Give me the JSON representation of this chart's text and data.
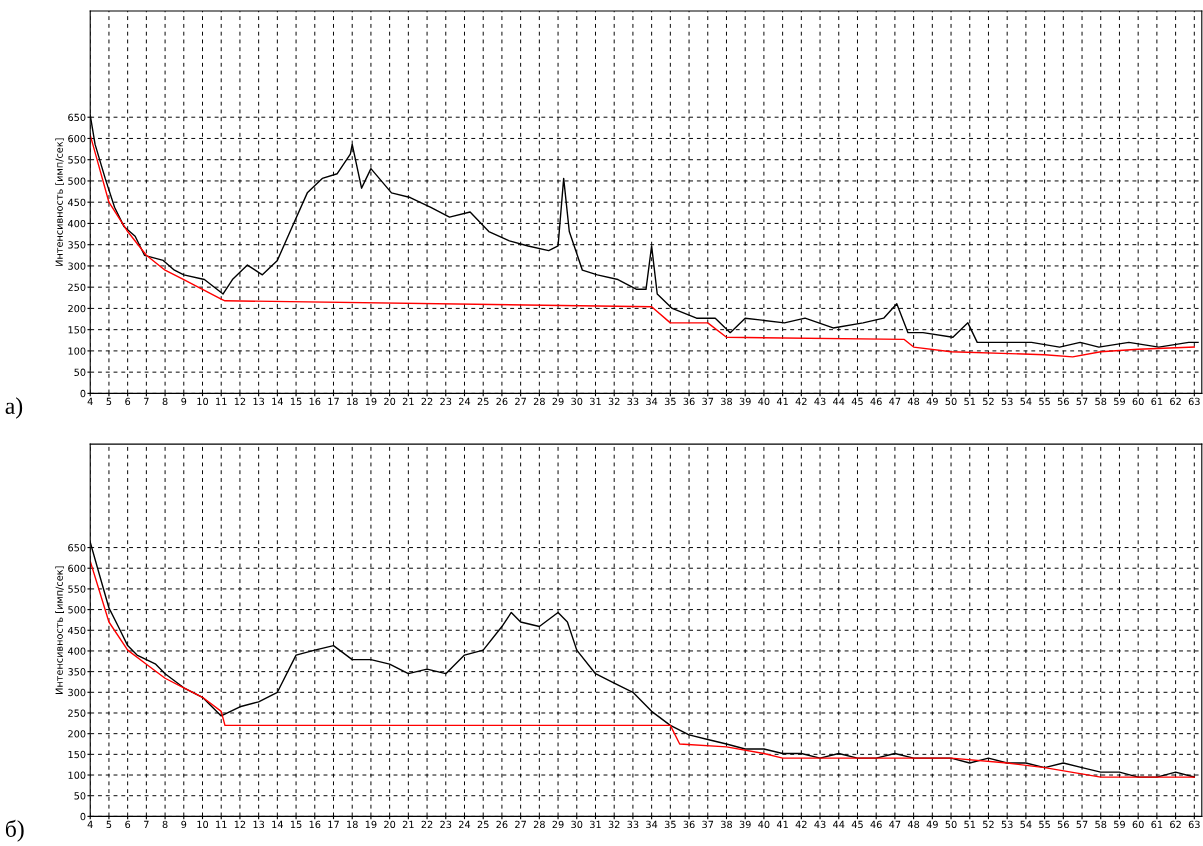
{
  "chart_data": [
    {
      "type": "line",
      "ylabel": "Интенсивность [имп/сек]",
      "annotations": [
        "а)"
      ],
      "xlim": [
        4,
        63.4
      ],
      "ylim": [
        0,
        900
      ],
      "xticks": [
        4,
        5,
        6,
        7,
        8,
        9,
        10,
        11,
        12,
        13,
        14,
        15,
        16,
        17,
        18,
        19,
        20,
        21,
        22,
        23,
        24,
        25,
        26,
        27,
        28,
        29,
        30,
        31,
        32,
        33,
        34,
        35,
        36,
        37,
        38,
        39,
        40,
        41,
        42,
        43,
        44,
        45,
        46,
        47,
        48,
        49,
        50,
        51,
        52,
        53,
        54,
        55,
        56,
        57,
        58,
        59,
        60,
        61,
        62,
        63
      ],
      "yticks": [
        0,
        50,
        100,
        150,
        200,
        250,
        300,
        350,
        400,
        450,
        500,
        550,
        600,
        650
      ],
      "grid": true,
      "series": [
        {
          "color": "#000000",
          "x": [
            4.0,
            4.26,
            4.8,
            5.3,
            5.8,
            6.4,
            6.9,
            7.9,
            8.5,
            9.0,
            10.1,
            11.1,
            11.6,
            12.4,
            13.2,
            14.0,
            14.8,
            15.6,
            16.4,
            17.2,
            17.9,
            18.0,
            18.5,
            19.0,
            20.1,
            21.1,
            22.2,
            23.2,
            24.3,
            25.3,
            26.4,
            27.4,
            28.5,
            29.0,
            29.3,
            29.6,
            30.3,
            31.1,
            32.2,
            33.2,
            33.7,
            34.0,
            34.3,
            35.1,
            36.4,
            37.4,
            38.2,
            39.0,
            41.1,
            42.2,
            43.7,
            45.3,
            46.4,
            47.1,
            47.7,
            48.5,
            50.1,
            50.9,
            51.4,
            52.7,
            54.3,
            55.8,
            56.9,
            57.9,
            59.5,
            61.1,
            62.7,
            63.2
          ],
          "values": [
            655,
            586,
            506,
            438,
            393,
            370,
            325,
            313,
            290,
            279,
            268,
            234,
            268,
            302,
            279,
            313,
            393,
            472,
            506,
            517,
            563,
            586,
            483,
            529,
            472,
            461,
            438,
            415,
            427,
            381,
            359,
            347,
            336,
            347,
            506,
            381,
            290,
            279,
            268,
            245,
            245,
            347,
            234,
            200,
            177,
            177,
            143,
            177,
            166,
            177,
            154,
            166,
            177,
            211,
            143,
            143,
            132,
            166,
            120,
            120,
            120,
            109,
            120,
            109,
            120,
            109,
            120,
            120
          ]
        },
        {
          "color": "#ff0000",
          "x": [
            4.0,
            5,
            6,
            7,
            8,
            9,
            10,
            11,
            11.2,
            34.0,
            35,
            37,
            38.0,
            47.5,
            48,
            50,
            55,
            56.5,
            58,
            60,
            63
          ],
          "values": [
            608,
            450,
            381,
            325,
            290,
            268,
            245,
            222,
            218,
            204,
            166,
            166,
            132,
            127,
            109,
            98,
            91,
            86,
            98,
            104,
            109
          ]
        }
      ]
    },
    {
      "type": "line",
      "ylabel": "Интенсивность [имп/сек]",
      "annotations": [
        "б)"
      ],
      "xlim": [
        4,
        63.4
      ],
      "ylim": [
        0,
        900
      ],
      "xticks": [
        4,
        5,
        6,
        7,
        8,
        9,
        10,
        11,
        12,
        13,
        14,
        15,
        16,
        17,
        18,
        19,
        20,
        21,
        22,
        23,
        24,
        25,
        26,
        27,
        28,
        29,
        30,
        31,
        32,
        33,
        34,
        35,
        36,
        37,
        38,
        39,
        40,
        41,
        42,
        43,
        44,
        45,
        46,
        47,
        48,
        49,
        50,
        51,
        52,
        53,
        54,
        55,
        56,
        57,
        58,
        59,
        60,
        61,
        62,
        63
      ],
      "yticks": [
        0,
        50,
        100,
        150,
        200,
        250,
        300,
        350,
        400,
        450,
        500,
        550,
        600,
        650
      ],
      "grid": true,
      "series": [
        {
          "color": "#000000",
          "x": [
            4.0,
            4.5,
            5.0,
            5.5,
            6,
            6.5,
            7,
            7.5,
            8,
            9,
            10,
            11,
            12,
            13,
            14,
            15,
            16,
            17,
            18,
            19,
            20,
            21,
            22,
            23,
            24,
            25,
            26,
            26.5,
            27,
            28,
            29,
            29.5,
            30,
            31,
            32,
            33,
            34,
            35,
            36,
            37,
            38,
            39,
            40,
            41,
            42,
            43,
            44,
            45,
            46,
            47,
            48,
            49,
            50,
            51,
            52,
            53,
            54,
            55,
            56,
            57,
            58,
            59,
            60,
            61,
            62,
            63
          ],
          "values": [
            663,
            583,
            504,
            459,
            413,
            390,
            379,
            368,
            345,
            311,
            288,
            243,
            265,
            277,
            300,
            390,
            402,
            413,
            379,
            379,
            368,
            345,
            356,
            345,
            390,
            402,
            459,
            493,
            470,
            459,
            493,
            470,
            402,
            345,
            322,
            300,
            254,
            220,
            197,
            186,
            175,
            163,
            163,
            152,
            152,
            141,
            152,
            141,
            141,
            152,
            141,
            141,
            141,
            129,
            141,
            129,
            129,
            118,
            129,
            118,
            107,
            107,
            95,
            95,
            107,
            95
          ]
        },
        {
          "color": "#ff0000",
          "x": [
            4.0,
            5,
            6,
            7,
            8,
            9,
            10,
            11,
            11.2,
            35.0,
            35.5,
            38,
            40,
            41,
            45,
            50,
            53,
            55,
            58,
            60,
            63
          ],
          "values": [
            617,
            470,
            402,
            368,
            334,
            311,
            288,
            254,
            220,
            220,
            175,
            168,
            152,
            141,
            141,
            141,
            129,
            118,
            95,
            95,
            95
          ]
        }
      ]
    }
  ]
}
